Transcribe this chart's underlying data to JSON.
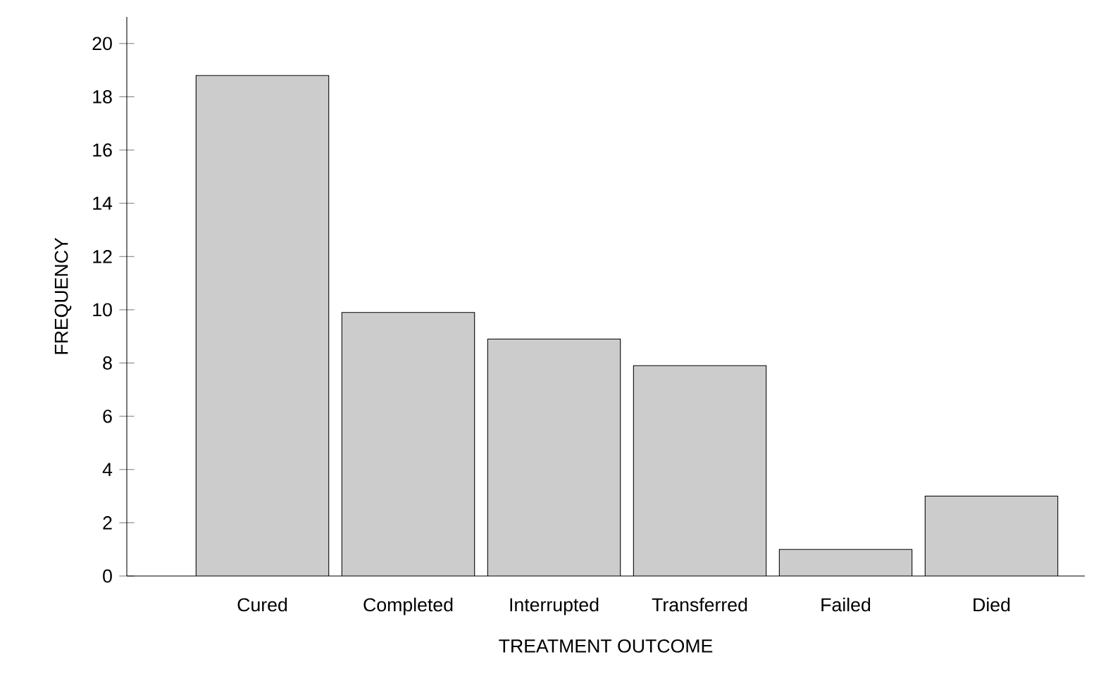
{
  "chart_data": {
    "type": "bar",
    "xlabel": "TREATMENT OUTCOME",
    "ylabel": "FREQUENCY",
    "categories": [
      "Cured",
      "Completed",
      "Interrupted",
      "Transferred",
      "Failed",
      "Died"
    ],
    "values": [
      18.8,
      9.9,
      8.9,
      7.9,
      1,
      3
    ],
    "color": "#cccccc",
    "ylim": [
      0,
      21
    ],
    "yticks": [
      0,
      2,
      4,
      6,
      8,
      10,
      12,
      14,
      16,
      18,
      20
    ]
  }
}
